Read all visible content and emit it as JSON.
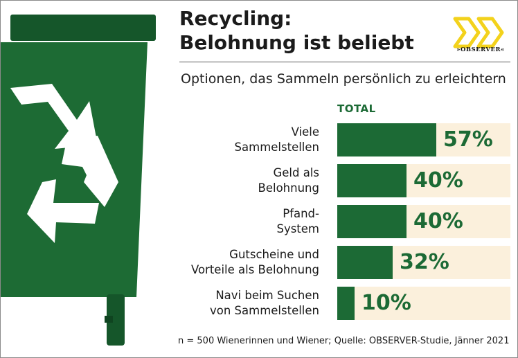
{
  "title_lines": [
    "Recycling:",
    "Belohnung ist beliebt"
  ],
  "subtitle": "Optionen, das Sammeln persönlich zu erleichtern",
  "logo": {
    "text": "»OBSERVER«"
  },
  "footnote": "n = 500 Wienerinnen und Wiener; Quelle: OBSERVER-Studie, Jänner 2021",
  "colors": {
    "bar": "#1c6a35",
    "track": "#fbf0dc",
    "bin": "#1d6b34",
    "bin_dark": "#15562a",
    "logo": "#f3d21c"
  },
  "chart_data": {
    "type": "bar",
    "orientation": "horizontal",
    "title": "Recycling: Belohnung ist beliebt",
    "subtitle": "Optionen, das Sammeln persönlich zu erleichtern",
    "series_name": "TOTAL",
    "categories": [
      [
        "Viele",
        "Sammelstellen"
      ],
      [
        "Geld als",
        "Belohnung"
      ],
      [
        "Pfand-",
        "System"
      ],
      [
        "Gutscheine und",
        "Vorteile als Belohnung"
      ],
      [
        "Navi beim Suchen",
        "von Sammelstellen"
      ]
    ],
    "values": [
      57,
      40,
      40,
      32,
      10
    ],
    "value_labels": [
      "57%",
      "40%",
      "40%",
      "32%",
      "10%"
    ],
    "xlim": [
      0,
      100
    ],
    "unit": "%"
  }
}
